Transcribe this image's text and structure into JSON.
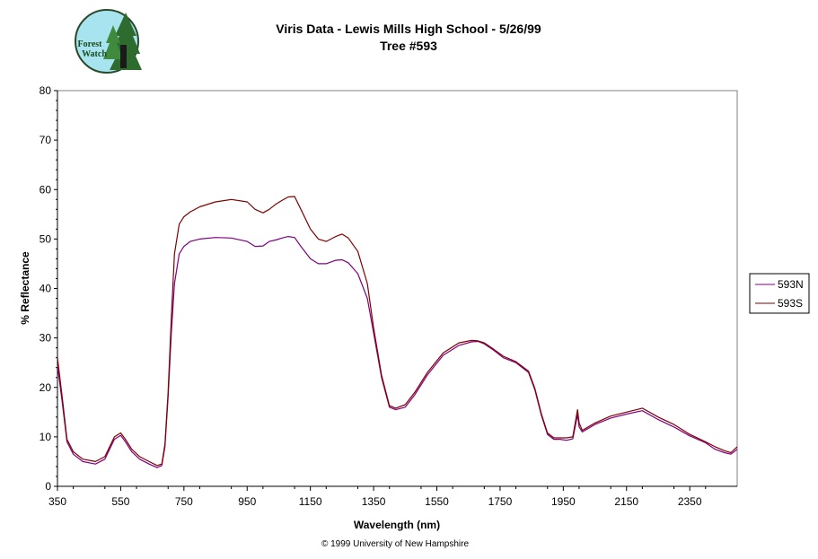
{
  "logo": {
    "text_line1": "Forest",
    "text_line2": "Watch"
  },
  "copyright": "© 1999 University of New Hampshire",
  "chart_data": {
    "type": "line",
    "title": "Viris Data - Lewis Mills High School - 5/26/99",
    "subtitle": "Tree #593",
    "xlabel": "Wavelength (nm)",
    "ylabel": "% Reflectance",
    "xlim": [
      350,
      2500
    ],
    "ylim": [
      0,
      80
    ],
    "xticks": [
      350,
      550,
      750,
      950,
      1150,
      1350,
      1550,
      1750,
      1950,
      2150,
      2350
    ],
    "yticks": [
      0,
      10,
      20,
      30,
      40,
      50,
      60,
      70,
      80
    ],
    "grid": false,
    "legend_position": "right",
    "series": [
      {
        "name": "593N",
        "color": "#800080",
        "x": [
          350,
          365,
          380,
          400,
          430,
          470,
          500,
          530,
          550,
          565,
          585,
          610,
          640,
          665,
          680,
          690,
          700,
          710,
          720,
          735,
          750,
          770,
          800,
          850,
          900,
          950,
          975,
          1000,
          1020,
          1040,
          1060,
          1080,
          1100,
          1120,
          1150,
          1175,
          1200,
          1230,
          1250,
          1270,
          1300,
          1330,
          1350,
          1375,
          1400,
          1420,
          1450,
          1480,
          1520,
          1570,
          1620,
          1660,
          1680,
          1700,
          1730,
          1760,
          1800,
          1840,
          1860,
          1880,
          1900,
          1920,
          1940,
          1960,
          1980,
          1995,
          2000,
          2010,
          2050,
          2100,
          2150,
          2200,
          2250,
          2300,
          2350,
          2400,
          2430,
          2460,
          2480,
          2500
        ],
        "y": [
          24.5,
          17,
          9,
          6.5,
          5,
          4.5,
          5.5,
          9.5,
          10.3,
          9,
          7,
          5.5,
          4.5,
          3.8,
          4.2,
          8,
          18,
          31,
          41,
          47,
          48.5,
          49.5,
          50,
          50.3,
          50.2,
          49.5,
          48.5,
          48.6,
          49.5,
          49.8,
          50.2,
          50.5,
          50.3,
          48.5,
          46,
          45,
          45,
          45.7,
          45.8,
          45.2,
          43,
          38,
          31,
          22,
          16,
          15.5,
          16,
          18.5,
          22.5,
          26.5,
          28.5,
          29.2,
          29.3,
          28.8,
          27.5,
          26,
          25,
          23,
          19.5,
          14.5,
          10.5,
          9.5,
          9.5,
          9.3,
          9.6,
          14.5,
          12,
          11,
          12.5,
          13.8,
          14.6,
          15.3,
          13.5,
          12,
          10.2,
          8.8,
          7.5,
          6.8,
          6.5,
          7.5
        ]
      },
      {
        "name": "593S",
        "color": "#800000",
        "x": [
          350,
          365,
          380,
          400,
          430,
          470,
          500,
          530,
          550,
          565,
          585,
          610,
          640,
          665,
          680,
          690,
          700,
          710,
          720,
          735,
          750,
          770,
          800,
          850,
          900,
          950,
          975,
          1000,
          1020,
          1040,
          1060,
          1080,
          1100,
          1120,
          1150,
          1175,
          1200,
          1230,
          1250,
          1270,
          1300,
          1330,
          1350,
          1375,
          1400,
          1420,
          1450,
          1480,
          1520,
          1570,
          1620,
          1660,
          1680,
          1700,
          1730,
          1760,
          1800,
          1840,
          1860,
          1880,
          1900,
          1920,
          1940,
          1960,
          1980,
          1995,
          2000,
          2010,
          2050,
          2100,
          2150,
          2200,
          2250,
          2300,
          2350,
          2400,
          2430,
          2460,
          2480,
          2500
        ],
        "y": [
          26,
          18,
          9.5,
          7,
          5.5,
          5,
          6,
          10,
          10.8,
          9.5,
          7.5,
          6,
          5,
          4.2,
          4.5,
          8.5,
          19,
          34,
          47,
          53,
          54.5,
          55.5,
          56.5,
          57.5,
          58,
          57.5,
          56,
          55.3,
          56,
          57,
          57.8,
          58.5,
          58.6,
          56,
          52,
          50,
          49.5,
          50.5,
          51,
          50.2,
          47.5,
          41,
          32,
          22.5,
          16.3,
          15.8,
          16.5,
          19,
          23,
          27,
          29,
          29.5,
          29.4,
          29,
          27.7,
          26.3,
          25.2,
          23.3,
          19.8,
          14.8,
          10.8,
          9.8,
          9.8,
          9.8,
          10,
          15.5,
          12.8,
          11.3,
          12.8,
          14.2,
          15,
          15.8,
          14,
          12.5,
          10.5,
          9,
          8,
          7.2,
          6.8,
          8
        ]
      }
    ]
  }
}
